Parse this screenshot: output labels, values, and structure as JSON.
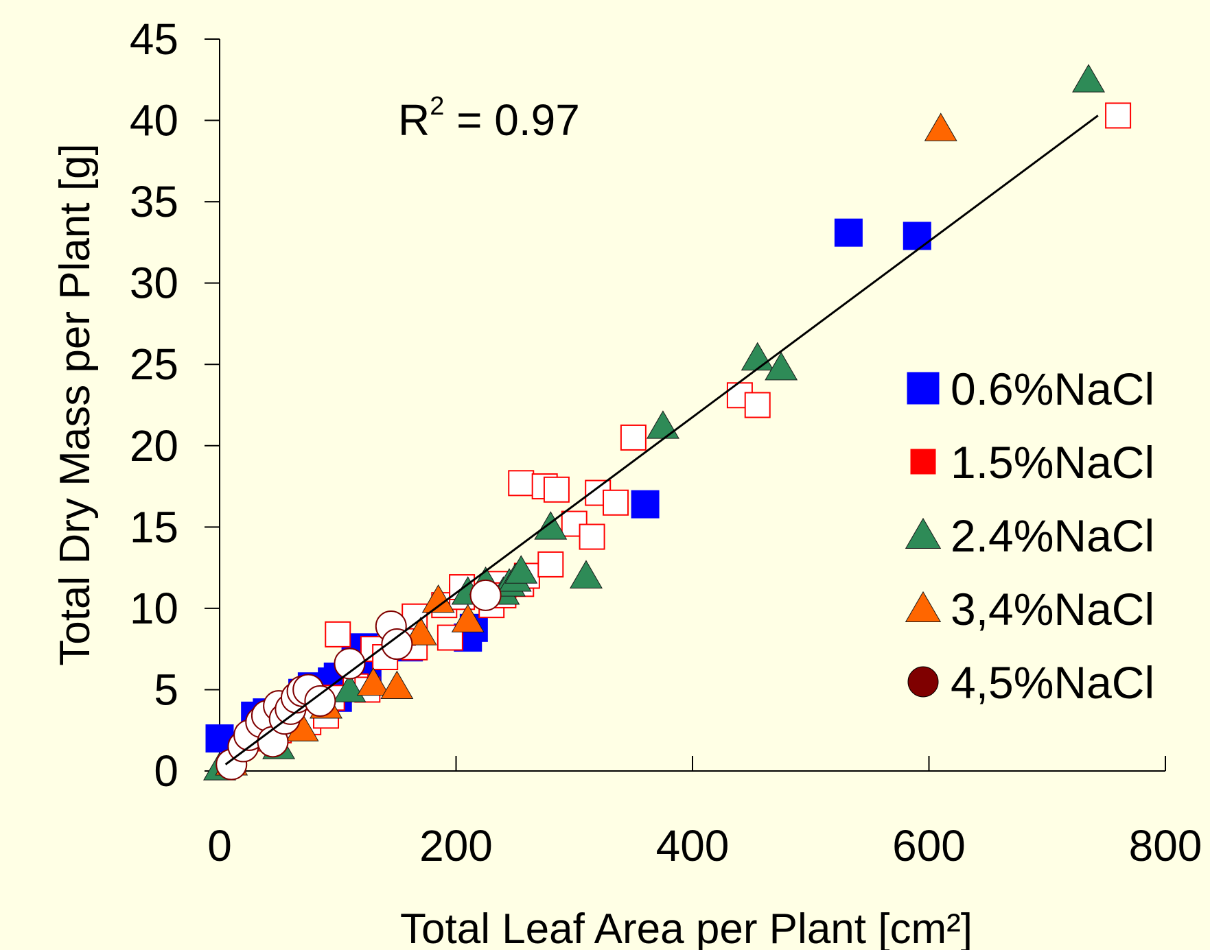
{
  "chart_data": {
    "type": "scatter",
    "xlabel": "Total Leaf Area per Plant [cm²]",
    "ylabel": "Total Dry Mass per Plant [g]",
    "xlim": [
      0,
      800
    ],
    "ylim": [
      0,
      45
    ],
    "x_ticks": [
      "0",
      "200",
      "400",
      "600",
      "800"
    ],
    "y_ticks": [
      "0",
      "5",
      "10",
      "15",
      "20",
      "25",
      "30",
      "35",
      "40",
      "45"
    ],
    "grid": false,
    "legend_position": "right",
    "annotation": {
      "r2_prefix": "R",
      "r2_exponent": "2",
      "r2_value": " = 0.97"
    },
    "trendline": {
      "x": [
        5,
        743
      ],
      "y": [
        0.4,
        40.3
      ],
      "color": "#000000"
    },
    "series": [
      {
        "name": "0.6%NaCl",
        "marker": "square-filled",
        "color": "#0000ff",
        "points": [
          [
            0,
            2
          ],
          [
            30,
            3.4
          ],
          [
            40,
            3.6
          ],
          [
            70,
            4.8
          ],
          [
            78,
            5.2
          ],
          [
            95,
            5.5
          ],
          [
            100,
            5.8
          ],
          [
            100,
            4.5
          ],
          [
            115,
            7.4
          ],
          [
            122,
            7.6
          ],
          [
            125,
            6.2
          ],
          [
            160,
            7.6
          ],
          [
            210,
            8.2
          ],
          [
            215,
            8.8
          ],
          [
            360,
            16.4
          ],
          [
            532,
            33.1
          ],
          [
            590,
            32.9
          ]
        ]
      },
      {
        "name": "1.5%NaCl",
        "marker": "square-open",
        "color": "#ff0000",
        "points": [
          [
            25,
            2
          ],
          [
            50,
            2.5
          ],
          [
            75,
            3
          ],
          [
            90,
            3.4
          ],
          [
            95,
            4.5
          ],
          [
            115,
            5.2
          ],
          [
            125,
            5
          ],
          [
            100,
            8.4
          ],
          [
            130,
            7.5
          ],
          [
            140,
            7
          ],
          [
            165,
            7.6
          ],
          [
            155,
            8.5
          ],
          [
            165,
            9.5
          ],
          [
            190,
            10.2
          ],
          [
            195,
            8.2
          ],
          [
            205,
            10.7
          ],
          [
            205,
            11.3
          ],
          [
            230,
            10.2
          ],
          [
            235,
            11.5
          ],
          [
            240,
            10.8
          ],
          [
            255,
            11.5
          ],
          [
            260,
            12
          ],
          [
            280,
            12.7
          ],
          [
            255,
            17.7
          ],
          [
            275,
            17.5
          ],
          [
            285,
            17.3
          ],
          [
            300,
            15.2
          ],
          [
            315,
            14.4
          ],
          [
            320,
            17.1
          ],
          [
            335,
            16.5
          ],
          [
            350,
            20.5
          ],
          [
            440,
            23.1
          ],
          [
            455,
            22.5
          ],
          [
            760,
            40.3
          ]
        ]
      },
      {
        "name": "2.4%NaCl",
        "marker": "triangle-filled",
        "color": "#2e8b57",
        "points": [
          [
            0,
            0.2
          ],
          [
            50,
            1.5
          ],
          [
            110,
            5
          ],
          [
            210,
            11
          ],
          [
            225,
            11.6
          ],
          [
            240,
            11
          ],
          [
            245,
            11.5
          ],
          [
            250,
            11.8
          ],
          [
            255,
            12.3
          ],
          [
            280,
            15
          ],
          [
            310,
            12
          ],
          [
            375,
            21.2
          ],
          [
            455,
            25.4
          ],
          [
            475,
            24.8
          ],
          [
            735,
            42.5
          ]
        ]
      },
      {
        "name": "3,4%NaCl",
        "marker": "triangle-filled",
        "color": "#ff6600",
        "points": [
          [
            10,
            0.5
          ],
          [
            70,
            2.6
          ],
          [
            90,
            4
          ],
          [
            130,
            5.4
          ],
          [
            150,
            5.2
          ],
          [
            170,
            8.5
          ],
          [
            185,
            10.5
          ],
          [
            210,
            9.3
          ],
          [
            610,
            39.5
          ]
        ]
      },
      {
        "name": "4,5%NaCl",
        "marker": "circle",
        "color": "#7f0000",
        "points": [
          [
            10,
            0.4
          ],
          [
            20,
            1.5
          ],
          [
            25,
            2.2
          ],
          [
            35,
            3
          ],
          [
            40,
            3.4
          ],
          [
            45,
            1.8
          ],
          [
            50,
            4
          ],
          [
            55,
            3.2
          ],
          [
            60,
            3.8
          ],
          [
            65,
            4.5
          ],
          [
            70,
            4.9
          ],
          [
            75,
            5
          ],
          [
            85,
            4.3
          ],
          [
            110,
            6.6
          ],
          [
            145,
            8.9
          ],
          [
            150,
            7.8
          ],
          [
            225,
            10.8
          ]
        ]
      }
    ]
  }
}
